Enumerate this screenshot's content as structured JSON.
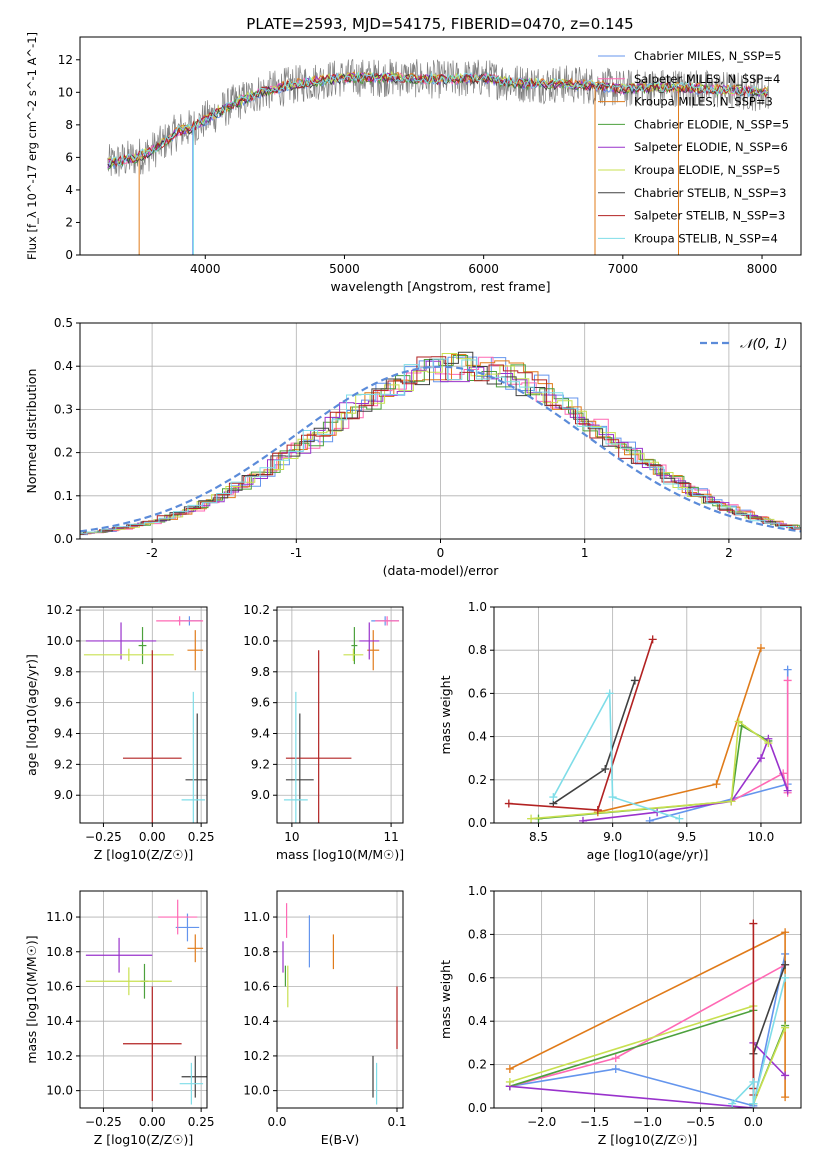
{
  "title": "PLATE=2593, MJD=54175, FIBERID=0470, z=0.145",
  "chart_data": [
    {
      "id": "spectrum",
      "type": "line",
      "xlabel": "wavelength [Angstrom, rest frame]",
      "ylabel": "Flux [f_λ 10^-17 erg cm^-2 s^-1 A^-1]",
      "xlim": [
        3100,
        8280
      ],
      "ylim": [
        0,
        13.4
      ],
      "xticks": [
        4000,
        5000,
        6000,
        7000,
        8000
      ],
      "yticks": [
        0,
        2,
        4,
        6,
        8,
        10,
        12
      ],
      "legend_position": "top-right",
      "grid": false,
      "data_color": "#808080",
      "continuum": {
        "x": [
          3300,
          3400,
          3500,
          3600,
          3700,
          3800,
          3900,
          4000,
          4100,
          4200,
          4400,
          4600,
          4800,
          5000,
          5200,
          5400,
          5600,
          5800,
          6000,
          6200,
          6400,
          6600,
          6800,
          7000,
          7200,
          7400,
          7600,
          7800,
          8000
        ],
        "y": [
          5.6,
          5.8,
          6.0,
          6.3,
          6.9,
          7.6,
          7.8,
          8.3,
          8.8,
          9.3,
          10.0,
          10.4,
          10.7,
          10.9,
          10.9,
          10.9,
          10.8,
          10.8,
          10.9,
          10.6,
          10.5,
          10.5,
          10.4,
          10.2,
          10.3,
          10.3,
          10.2,
          10.1,
          10.0
        ]
      },
      "series": [
        {
          "name": "Chabrier MILES, N_SSP=5",
          "color": "#6495ed"
        },
        {
          "name": "Salpeter MILES, N_SSP=4",
          "color": "#ff69b4"
        },
        {
          "name": "Kroupa MILES, N_SSP=3",
          "color": "#e07b1a"
        },
        {
          "name": "Chabrier ELODIE, N_SSP=5",
          "color": "#4ca03c"
        },
        {
          "name": "Salpeter ELODIE, N_SSP=6",
          "color": "#9932cc"
        },
        {
          "name": "Kroupa ELODIE, N_SSP=5",
          "color": "#c8e050"
        },
        {
          "name": "Chabrier STELIB, N_SSP=3",
          "color": "#404040"
        },
        {
          "name": "Salpeter STELIB, N_SSP=3",
          "color": "#b22222"
        },
        {
          "name": "Kroupa STELIB, N_SSP=4",
          "color": "#7fdde8"
        }
      ]
    },
    {
      "id": "residuals",
      "type": "line",
      "xlabel": "(data-model)/error",
      "ylabel": "Normed distribution",
      "xlim": [
        -2.5,
        2.5
      ],
      "ylim": [
        0,
        0.5
      ],
      "xticks": [
        -2,
        -1,
        0,
        1,
        2
      ],
      "yticks": [
        0.0,
        0.1,
        0.2,
        0.3,
        0.4,
        0.5
      ],
      "grid": true,
      "legend_position": "top-right",
      "reference_label": "𝒩(0, 1)",
      "reference_color": "#5b8bd9",
      "bin_width": 0.1
    },
    {
      "id": "age-vs-Z",
      "type": "scatter",
      "xlabel": "Z [log10(Z/Z☉)]",
      "ylabel": "age [log10(age/yr)]",
      "xlim": [
        -0.37,
        0.28
      ],
      "ylim": [
        8.82,
        10.22
      ],
      "xticks": [
        -0.25,
        0.0,
        0.25
      ],
      "xtick_labels": [
        "−0.25",
        "0.00",
        "0.25"
      ],
      "yticks": [
        9.0,
        9.2,
        9.4,
        9.6,
        9.8,
        10.0,
        10.2
      ],
      "grid": true,
      "points": [
        {
          "x": 0.19,
          "y": 10.13,
          "xerr": 0.06,
          "yerr": 0.03,
          "color": "#6495ed"
        },
        {
          "x": 0.14,
          "y": 10.13,
          "xerr": 0.12,
          "yerr": 0.03,
          "color": "#ff69b4"
        },
        {
          "x": 0.22,
          "y": 9.94,
          "xerr": 0.04,
          "yerr": 0.13,
          "color": "#e07b1a"
        },
        {
          "x": -0.05,
          "y": 9.97,
          "xerr": 0.02,
          "yerr": 0.12,
          "color": "#4ca03c"
        },
        {
          "x": -0.16,
          "y": 10.0,
          "xerr": 0.18,
          "yerr": 0.12,
          "color": "#9932cc"
        },
        {
          "x": -0.12,
          "y": 9.91,
          "xerr": 0.23,
          "yerr": 0.04,
          "color": "#c8e050"
        },
        {
          "x": 0.23,
          "y": 9.1,
          "xerr": 0.06,
          "yerr": 0.43,
          "color": "#404040"
        },
        {
          "x": 0.0,
          "y": 9.24,
          "xerr": 0.15,
          "yerr": 0.7,
          "color": "#b22222"
        },
        {
          "x": 0.21,
          "y": 8.97,
          "xerr": 0.06,
          "yerr": 0.7,
          "color": "#7fdde8"
        }
      ]
    },
    {
      "id": "age-vs-mass",
      "type": "scatter",
      "xlabel": "mass [log10(M/M☉)]",
      "ylabel": "",
      "xlim": [
        9.85,
        11.12
      ],
      "ylim": [
        8.82,
        10.22
      ],
      "xticks": [
        10,
        11
      ],
      "yticks": [
        9.0,
        9.2,
        9.4,
        9.6,
        9.8,
        10.0,
        10.2
      ],
      "grid": true,
      "points": [
        {
          "x": 10.94,
          "y": 10.13,
          "xerr": 0.14,
          "yerr": 0.03,
          "color": "#6495ed"
        },
        {
          "x": 10.96,
          "y": 10.13,
          "xerr": 0.12,
          "yerr": 0.03,
          "color": "#ff69b4"
        },
        {
          "x": 10.82,
          "y": 9.94,
          "xerr": 0.06,
          "yerr": 0.13,
          "color": "#e07b1a"
        },
        {
          "x": 10.63,
          "y": 9.97,
          "xerr": 0.03,
          "yerr": 0.12,
          "color": "#4ca03c"
        },
        {
          "x": 10.78,
          "y": 10.0,
          "xerr": 0.1,
          "yerr": 0.12,
          "color": "#9932cc"
        },
        {
          "x": 10.62,
          "y": 9.91,
          "xerr": 0.1,
          "yerr": 0.04,
          "color": "#c8e050"
        },
        {
          "x": 10.08,
          "y": 9.1,
          "xerr": 0.14,
          "yerr": 0.43,
          "color": "#404040"
        },
        {
          "x": 10.27,
          "y": 9.24,
          "xerr": 0.33,
          "yerr": 0.7,
          "color": "#b22222"
        },
        {
          "x": 10.04,
          "y": 8.97,
          "xerr": 0.12,
          "yerr": 0.7,
          "color": "#7fdde8"
        }
      ]
    },
    {
      "id": "weight-vs-age",
      "type": "line",
      "xlabel": "age [log10(age/yr)]",
      "ylabel": "mass weight",
      "xlim": [
        8.2,
        10.27
      ],
      "ylim": [
        0,
        1.0
      ],
      "xticks": [
        8.5,
        9.0,
        9.5,
        10.0
      ],
      "yticks": [
        0.0,
        0.2,
        0.4,
        0.6,
        0.8,
        1.0
      ],
      "grid": true,
      "series": [
        {
          "color": "#6495ed",
          "x": [
            9.25,
            10.18,
            10.18
          ],
          "y": [
            0.01,
            0.18,
            0.71
          ]
        },
        {
          "color": "#ff69b4",
          "x": [
            9.8,
            10.15,
            10.18,
            10.18
          ],
          "y": [
            0.1,
            0.23,
            0.14,
            0.66
          ]
        },
        {
          "color": "#e07b1a",
          "x": [
            8.9,
            9.7,
            10.0
          ],
          "y": [
            0.05,
            0.18,
            0.81
          ]
        },
        {
          "color": "#4ca03c",
          "x": [
            8.5,
            9.8,
            9.87,
            10.05
          ],
          "y": [
            0.02,
            0.1,
            0.45,
            0.38
          ]
        },
        {
          "color": "#9932cc",
          "x": [
            8.8,
            9.3,
            9.8,
            10.0,
            10.05,
            10.18
          ],
          "y": [
            0.01,
            0.05,
            0.1,
            0.3,
            0.39,
            0.15
          ]
        },
        {
          "color": "#c8e050",
          "x": [
            8.45,
            9.8,
            9.85,
            10.05
          ],
          "y": [
            0.02,
            0.1,
            0.47,
            0.37
          ]
        },
        {
          "color": "#404040",
          "x": [
            8.6,
            8.95,
            9.15
          ],
          "y": [
            0.09,
            0.25,
            0.66
          ]
        },
        {
          "color": "#b22222",
          "x": [
            8.3,
            8.9,
            9.27
          ],
          "y": [
            0.09,
            0.06,
            0.85
          ]
        },
        {
          "color": "#7fdde8",
          "x": [
            8.6,
            8.98,
            9.0,
            9.45
          ],
          "y": [
            0.12,
            0.6,
            0.12,
            0.02
          ]
        }
      ]
    },
    {
      "id": "mass-vs-Z",
      "type": "scatter",
      "xlabel": "Z [log10(Z/Z☉)]",
      "ylabel": "mass [log10(M/M☉)]",
      "xlim": [
        -0.37,
        0.28
      ],
      "ylim": [
        9.9,
        11.15
      ],
      "xticks": [
        -0.25,
        0.0,
        0.25
      ],
      "xtick_labels": [
        "−0.25",
        "0.00",
        "0.25"
      ],
      "yticks": [
        10.0,
        10.2,
        10.4,
        10.6,
        10.8,
        11.0
      ],
      "grid": true,
      "points": [
        {
          "x": 0.18,
          "y": 10.94,
          "xerr": 0.06,
          "yerr": 0.08,
          "color": "#6495ed"
        },
        {
          "x": 0.13,
          "y": 11.0,
          "xerr": 0.1,
          "yerr": 0.1,
          "color": "#ff69b4"
        },
        {
          "x": 0.22,
          "y": 10.82,
          "xerr": 0.04,
          "yerr": 0.08,
          "color": "#e07b1a"
        },
        {
          "x": -0.04,
          "y": 10.63,
          "xerr": 0.02,
          "yerr": 0.1,
          "color": "#4ca03c"
        },
        {
          "x": -0.17,
          "y": 10.78,
          "xerr": 0.17,
          "yerr": 0.1,
          "color": "#9932cc"
        },
        {
          "x": -0.12,
          "y": 10.63,
          "xerr": 0.22,
          "yerr": 0.08,
          "color": "#c8e050"
        },
        {
          "x": 0.22,
          "y": 10.08,
          "xerr": 0.07,
          "yerr": 0.12,
          "color": "#404040"
        },
        {
          "x": 0.0,
          "y": 10.27,
          "xerr": 0.15,
          "yerr": 0.33,
          "color": "#b22222"
        },
        {
          "x": 0.2,
          "y": 10.04,
          "xerr": 0.06,
          "yerr": 0.12,
          "color": "#7fdde8"
        }
      ]
    },
    {
      "id": "mass-vs-ebv",
      "type": "scatter",
      "xlabel": "E(B-V)",
      "ylabel": "",
      "xlim": [
        0,
        0.105
      ],
      "ylim": [
        9.9,
        11.15
      ],
      "xticks": [
        0.0,
        0.1
      ],
      "yticks": [
        10.0,
        10.2,
        10.4,
        10.6,
        10.8,
        11.0
      ],
      "grid": true,
      "points": [
        {
          "x": 0.027,
          "y": 10.86,
          "yerr": 0.15,
          "color": "#6495ed"
        },
        {
          "x": 0.008,
          "y": 10.98,
          "yerr": 0.1,
          "color": "#ff69b4"
        },
        {
          "x": 0.047,
          "y": 10.8,
          "yerr": 0.1,
          "color": "#e07b1a"
        },
        {
          "x": 0.007,
          "y": 10.66,
          "yerr": 0.06,
          "color": "#4ca03c"
        },
        {
          "x": 0.005,
          "y": 10.77,
          "yerr": 0.09,
          "color": "#9932cc"
        },
        {
          "x": 0.009,
          "y": 10.6,
          "yerr": 0.12,
          "color": "#c8e050"
        },
        {
          "x": 0.08,
          "y": 10.08,
          "yerr": 0.12,
          "color": "#404040"
        },
        {
          "x": 0.1,
          "y": 10.42,
          "yerr": 0.18,
          "color": "#b22222"
        },
        {
          "x": 0.083,
          "y": 10.04,
          "yerr": 0.12,
          "color": "#7fdde8"
        }
      ]
    },
    {
      "id": "weight-vs-Z",
      "type": "line",
      "xlabel": "Z [log10(Z/Z☉)]",
      "ylabel": "mass weight",
      "xlim": [
        -2.45,
        0.45
      ],
      "ylim": [
        0,
        1.0
      ],
      "xticks": [
        -2.0,
        -1.5,
        -1.0,
        -0.5,
        0.0
      ],
      "xtick_labels": [
        "−2.0",
        "−1.5",
        "−1.0",
        "−0.5",
        "0.0"
      ],
      "yticks": [
        0.0,
        0.2,
        0.4,
        0.6,
        0.8,
        1.0
      ],
      "grid": true,
      "series": [
        {
          "color": "#6495ed",
          "x": [
            -2.3,
            -1.3,
            0.0,
            0.3
          ],
          "y": [
            0.1,
            0.18,
            0.01,
            0.71
          ]
        },
        {
          "color": "#ff69b4",
          "x": [
            -2.3,
            -1.3,
            0.3
          ],
          "y": [
            0.1,
            0.23,
            0.66
          ]
        },
        {
          "color": "#e07b1a",
          "x": [
            -2.3,
            0.3,
            0.3
          ],
          "y": [
            0.18,
            0.81,
            0.05
          ]
        },
        {
          "color": "#4ca03c",
          "x": [
            -2.3,
            0.0,
            0.0,
            0.3
          ],
          "y": [
            0.1,
            0.45,
            0.02,
            0.38
          ]
        },
        {
          "color": "#9932cc",
          "x": [
            -2.3,
            0.0,
            0.0,
            0.3
          ],
          "y": [
            0.1,
            0.0,
            0.3,
            0.15
          ]
        },
        {
          "color": "#c8e050",
          "x": [
            -2.3,
            0.0,
            0.0,
            0.3
          ],
          "y": [
            0.12,
            0.47,
            0.02,
            0.37
          ]
        },
        {
          "color": "#404040",
          "x": [
            0.0,
            0.0,
            0.3
          ],
          "y": [
            0.09,
            0.25,
            0.66
          ]
        },
        {
          "color": "#b22222",
          "x": [
            0.0,
            0.0,
            0.0
          ],
          "y": [
            0.09,
            0.06,
            0.85
          ]
        },
        {
          "color": "#7fdde8",
          "x": [
            -0.2,
            0.0,
            0.0,
            0.3
          ],
          "y": [
            0.02,
            0.12,
            0.02,
            0.6
          ]
        }
      ]
    }
  ]
}
